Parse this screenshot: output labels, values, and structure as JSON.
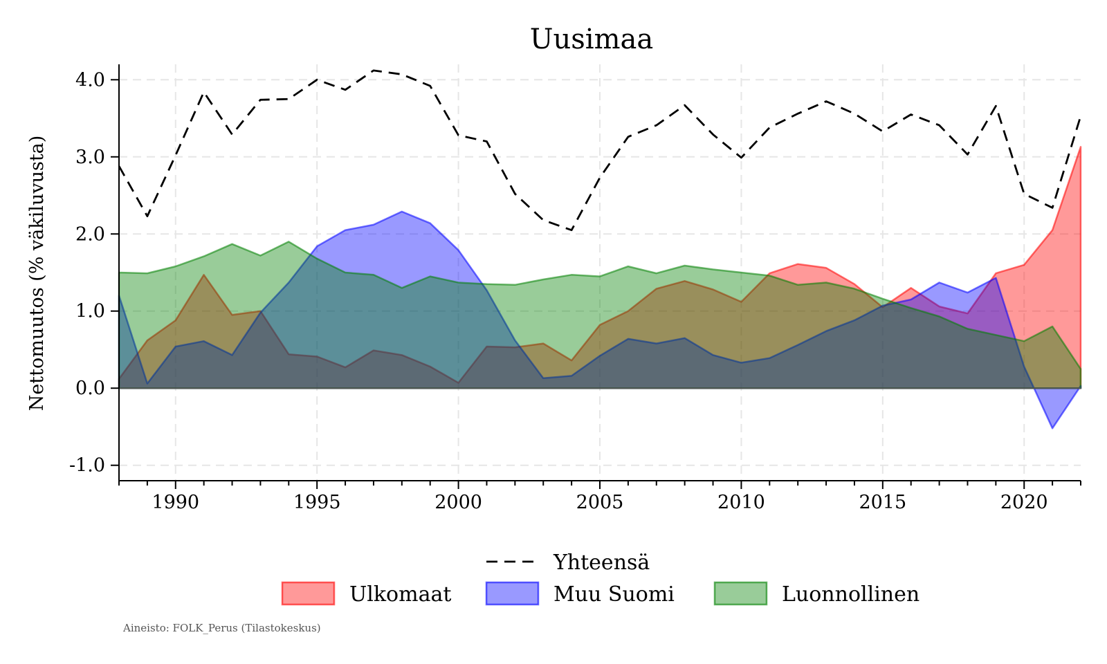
{
  "chart_data": {
    "type": "area",
    "title": "Uusimaa",
    "xlabel": "",
    "ylabel": "Nettomuutos (% väkiluvusta)",
    "xlim": [
      1988,
      2022
    ],
    "ylim": [
      -1.2,
      4.2
    ],
    "xticks": [
      1990,
      1995,
      2000,
      2005,
      2010,
      2015,
      2020
    ],
    "xtick_labels": [
      "1990",
      "1995",
      "2000",
      "2005",
      "2010",
      "2015",
      "2020"
    ],
    "yticks": [
      -1.0,
      0.0,
      1.0,
      2.0,
      3.0,
      4.0
    ],
    "ytick_labels": [
      "-1.0",
      "0.0",
      "1.0",
      "2.0",
      "3.0",
      "4.0"
    ],
    "grid": true,
    "legend_position": "bottom",
    "x": [
      1988,
      1989,
      1990,
      1991,
      1992,
      1993,
      1994,
      1995,
      1996,
      1997,
      1998,
      1999,
      2000,
      2001,
      2002,
      2003,
      2004,
      2005,
      2006,
      2007,
      2008,
      2009,
      2010,
      2011,
      2012,
      2013,
      2014,
      2015,
      2016,
      2017,
      2018,
      2019,
      2020,
      2021,
      2022
    ],
    "series": [
      {
        "name": "Ulkomaat",
        "kind": "area",
        "color": "#ff0000",
        "values": [
          0.12,
          0.62,
          0.88,
          1.47,
          0.95,
          1.0,
          0.44,
          0.41,
          0.27,
          0.49,
          0.43,
          0.28,
          0.07,
          0.54,
          0.53,
          0.58,
          0.36,
          0.82,
          1.0,
          1.29,
          1.39,
          1.28,
          1.12,
          1.49,
          1.61,
          1.56,
          1.35,
          1.05,
          1.3,
          1.06,
          0.97,
          1.49,
          1.6,
          2.05,
          3.13
        ]
      },
      {
        "name": "Muu Suomi",
        "kind": "area",
        "color": "#0000ff",
        "values": [
          1.2,
          0.06,
          0.54,
          0.61,
          0.43,
          0.98,
          1.37,
          1.84,
          2.05,
          2.12,
          2.29,
          2.14,
          1.79,
          1.27,
          0.62,
          0.13,
          0.16,
          0.42,
          0.64,
          0.58,
          0.65,
          0.43,
          0.33,
          0.39,
          0.56,
          0.74,
          0.88,
          1.07,
          1.15,
          1.37,
          1.24,
          1.43,
          0.28,
          -0.52,
          0.03
        ]
      },
      {
        "name": "Luonnollinen",
        "kind": "area",
        "color": "#008000",
        "values": [
          1.5,
          1.49,
          1.58,
          1.71,
          1.87,
          1.72,
          1.9,
          1.68,
          1.5,
          1.47,
          1.3,
          1.45,
          1.37,
          1.35,
          1.34,
          1.41,
          1.47,
          1.45,
          1.58,
          1.49,
          1.59,
          1.54,
          1.5,
          1.46,
          1.34,
          1.37,
          1.29,
          1.16,
          1.04,
          0.93,
          0.77,
          0.69,
          0.61,
          0.8,
          0.25
        ]
      },
      {
        "name": "Yhteensä",
        "kind": "line",
        "color": "#000000",
        "values": [
          2.88,
          2.23,
          3.02,
          3.84,
          3.29,
          3.74,
          3.75,
          4.0,
          3.87,
          4.12,
          4.07,
          3.92,
          3.28,
          3.2,
          2.52,
          2.18,
          2.05,
          2.73,
          3.26,
          3.41,
          3.67,
          3.29,
          2.99,
          3.38,
          3.56,
          3.72,
          3.56,
          3.33,
          3.55,
          3.41,
          3.03,
          3.66,
          2.52,
          2.34,
          3.53
        ]
      }
    ],
    "legend": {
      "row1": [
        "Yhteensä"
      ],
      "row2": [
        "Ulkomaat",
        "Muu Suomi",
        "Luonnollinen"
      ]
    }
  },
  "source_note": "Aineisto: FOLK_Perus (Tilastokeskus)"
}
